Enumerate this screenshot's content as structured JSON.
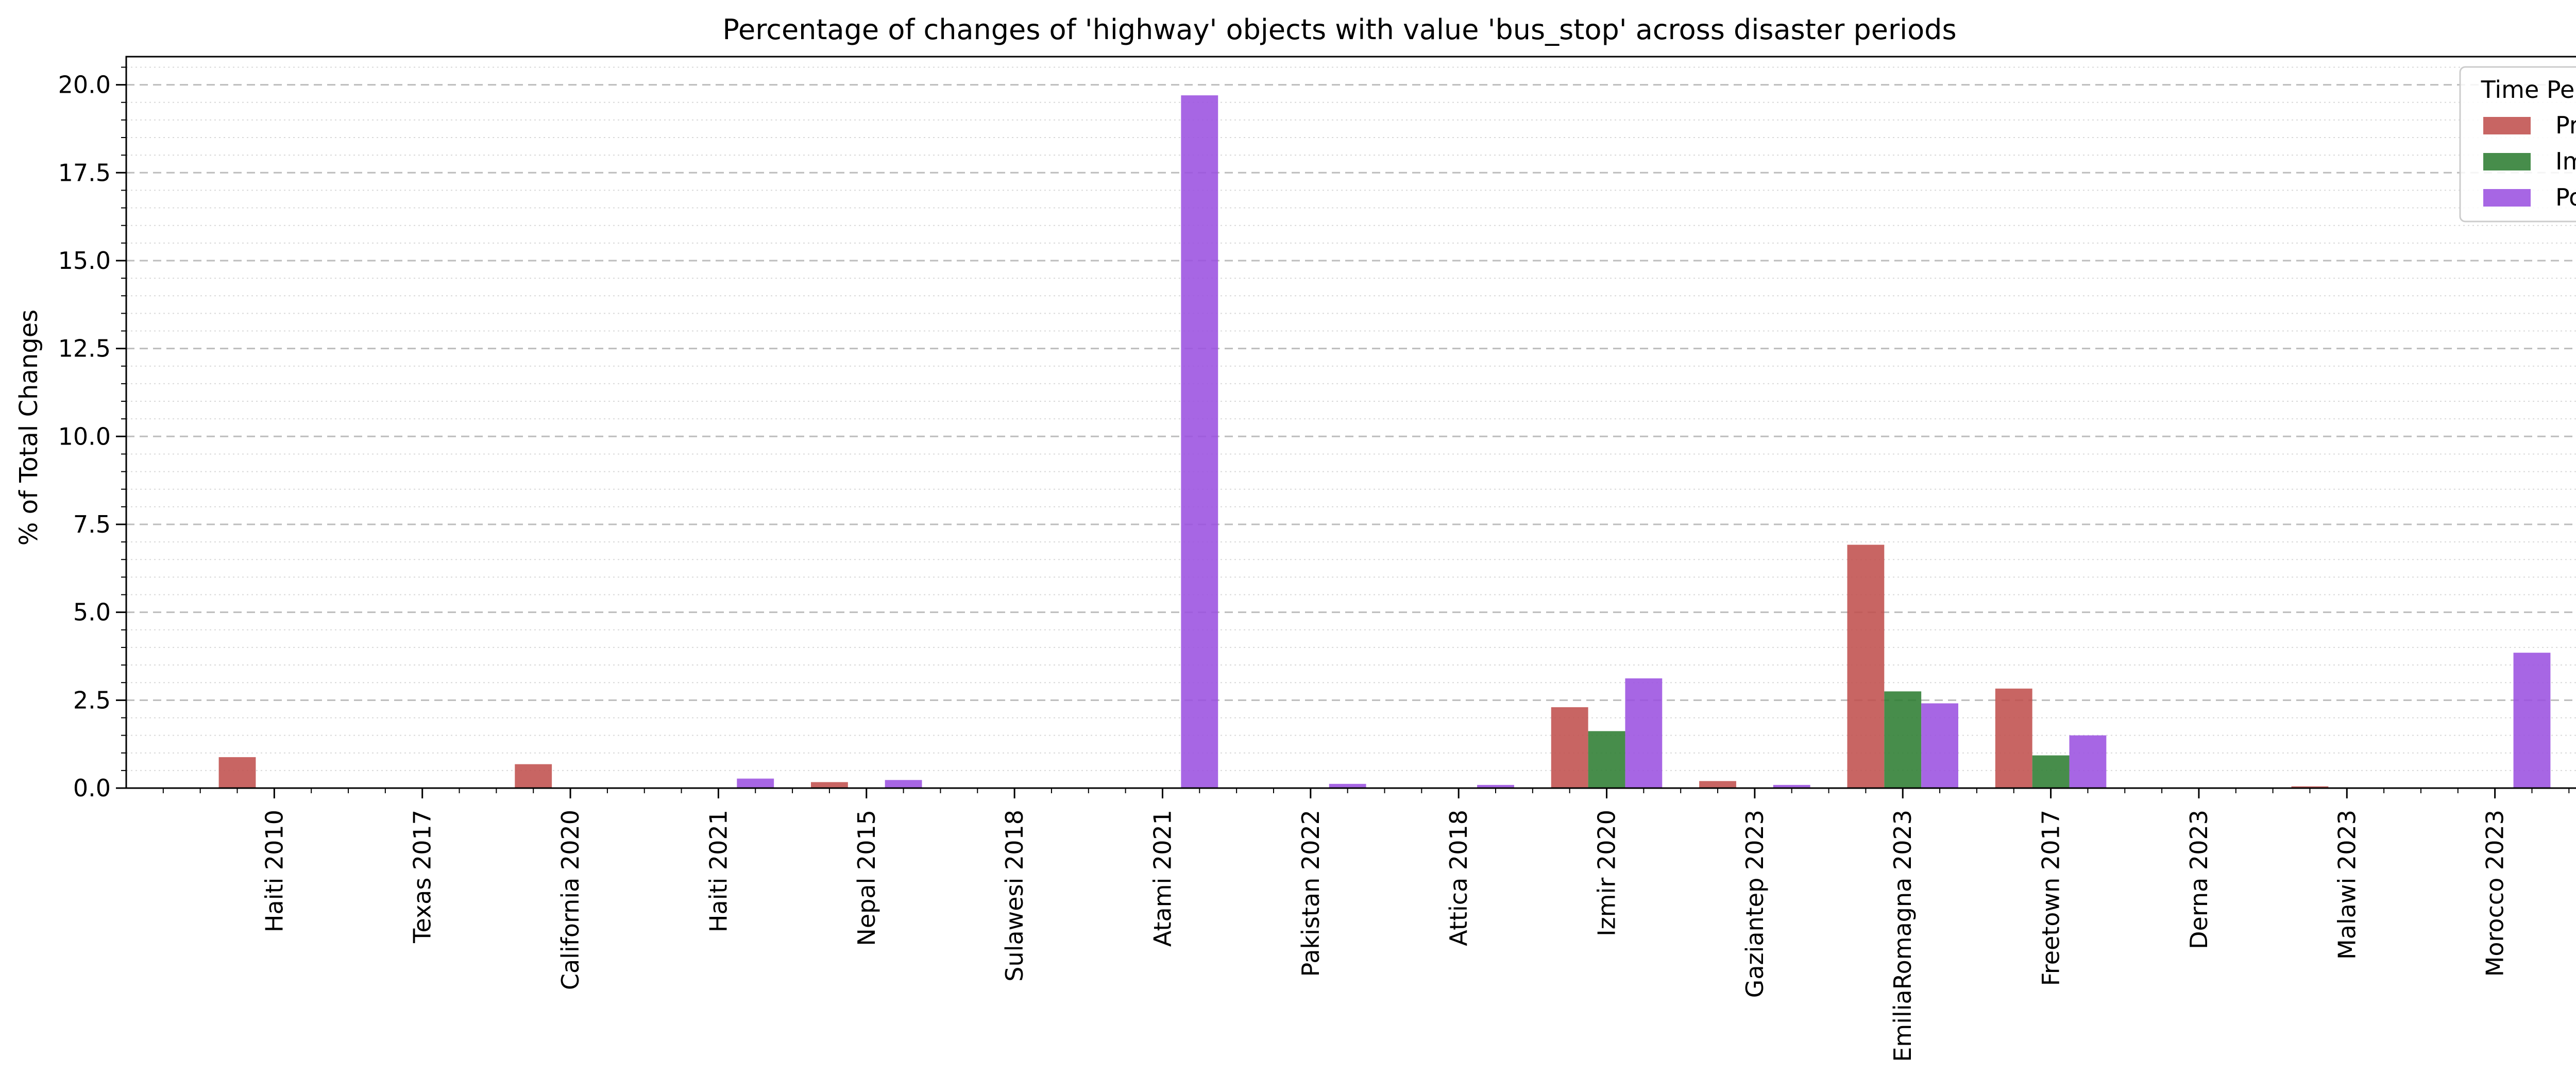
{
  "chart_data": {
    "type": "bar",
    "title": "Percentage of changes of 'highway' objects with value 'bus_stop' across disaster periods",
    "xlabel": "",
    "ylabel": "% of Total Changes",
    "ylim": [
      0,
      20.8
    ],
    "yticks": [
      "0.0",
      "2.5",
      "5.0",
      "7.5",
      "10.0",
      "12.5",
      "15.0",
      "17.5",
      "20.0"
    ],
    "grid": "horizontal dashed major, dotted minor",
    "legend": {
      "title": "Time Period",
      "placement": "top-right"
    },
    "categories": [
      "Haiti 2010",
      "Texas 2017",
      "California 2020",
      "Haiti 2021",
      "Nepal 2015",
      "Sulawesi 2018",
      "Atami 2021",
      "Pakistan 2022",
      "Attica 2018",
      "Izmir 2020",
      "Gaziantep 2023",
      "EmiliaRomagna 2023",
      "Freetown 2017",
      "Derna 2023",
      "Malawi 2023",
      "Morocco 2023"
    ],
    "series": [
      {
        "name": "Pre",
        "color": "#c0504d",
        "values": [
          0.88,
          0,
          0.68,
          0,
          0.17,
          0,
          0,
          0,
          0,
          2.3,
          0.2,
          6.92,
          2.83,
          0,
          0.05,
          0
        ]
      },
      {
        "name": "Imm",
        "color": "#2e7d32",
        "values": [
          0,
          0,
          0,
          0,
          0,
          0,
          0,
          0,
          0,
          1.62,
          0,
          2.75,
          0.93,
          0,
          0,
          0
        ]
      },
      {
        "name": "Post",
        "color": "#9b51e0",
        "values": [
          0,
          0,
          0,
          0.27,
          0.23,
          0,
          19.7,
          0.12,
          0.09,
          3.12,
          0.09,
          2.41,
          1.5,
          0,
          0,
          3.85
        ]
      }
    ]
  }
}
